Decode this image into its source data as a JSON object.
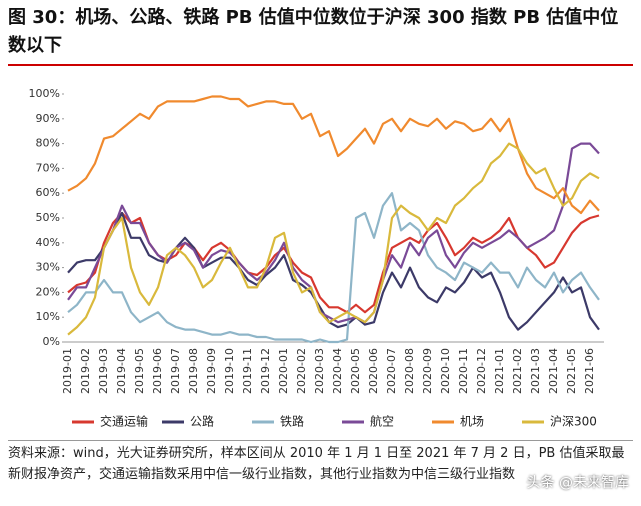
{
  "title": "图 30：机场、公路、铁路 PB 估值中位数位于沪深 300 指数 PB 估值中位数以下",
  "source": "资料来源：wind，光大证券研究所，样本区间从 2010 年 1 月 1 日至 2021 年 7 月 2 日，PB 估值采取最新财报净资产，交通运输指数采用中信一级行业指数，其他行业指数为中信三级行业指数",
  "watermark": "头条 @未来智库",
  "chart_data": {
    "type": "line",
    "categories": [
      "2019-01",
      null,
      "2019-02",
      null,
      "2019-03",
      null,
      "2019-04",
      null,
      "2019-05",
      null,
      "2019-06",
      null,
      "2019-07",
      null,
      "2019-08",
      null,
      "2019-09",
      null,
      "2019-10",
      null,
      "2019-11",
      null,
      "2019-12",
      null,
      "2020-01",
      null,
      "2020-02",
      null,
      "2020-03",
      null,
      "2020-04",
      null,
      "2020-05",
      null,
      "2020-06",
      null,
      "2020-07",
      null,
      "2020-08",
      null,
      "2020-09",
      null,
      "2020-10",
      null,
      "2020-11",
      null,
      "2020-12",
      null,
      "2021-01",
      null,
      "2021-02",
      null,
      "2021-03",
      null,
      "2021-04",
      null,
      "2021-05",
      null,
      "2021-06",
      null
    ],
    "ylim": [
      0,
      100
    ],
    "yticks": [
      {
        "value": 0,
        "label": "0%"
      },
      {
        "value": 10,
        "label": "10%"
      },
      {
        "value": 20,
        "label": "20%"
      },
      {
        "value": 30,
        "label": "30%"
      },
      {
        "value": 40,
        "label": "40%"
      },
      {
        "value": 50,
        "label": "50%"
      },
      {
        "value": 60,
        "label": "60%"
      },
      {
        "value": 70,
        "label": "70%"
      },
      {
        "value": 80,
        "label": "80%"
      },
      {
        "value": 90,
        "label": "90%"
      },
      {
        "value": 100,
        "label": "100%"
      }
    ],
    "legend": "bottom",
    "series": [
      {
        "name": "交通运输",
        "color": "#d7382f",
        "values": [
          20,
          23,
          24,
          28,
          40,
          48,
          52,
          48,
          50,
          40,
          35,
          33,
          35,
          40,
          38,
          33,
          38,
          40,
          37,
          32,
          28,
          27,
          30,
          35,
          38,
          32,
          28,
          26,
          18,
          14,
          14,
          12,
          15,
          12,
          15,
          28,
          38,
          40,
          42,
          40,
          45,
          48,
          42,
          35,
          38,
          42,
          40,
          42,
          45,
          50,
          42,
          38,
          35,
          30,
          32,
          38,
          44,
          48,
          50,
          51
        ]
      },
      {
        "name": "公路",
        "color": "#3c3a68",
        "values": [
          28,
          32,
          33,
          33,
          38,
          45,
          52,
          42,
          42,
          35,
          33,
          32,
          38,
          42,
          38,
          30,
          32,
          34,
          34,
          30,
          25,
          23,
          27,
          30,
          35,
          25,
          23,
          20,
          14,
          8,
          6,
          7,
          10,
          7,
          8,
          20,
          28,
          22,
          30,
          22,
          18,
          16,
          22,
          20,
          24,
          30,
          26,
          28,
          20,
          10,
          5,
          8,
          12,
          16,
          20,
          26,
          20,
          22,
          10,
          5
        ]
      },
      {
        "name": "铁路",
        "color": "#8eb5c8",
        "values": [
          12,
          15,
          20,
          20,
          25,
          20,
          20,
          12,
          8,
          10,
          12,
          8,
          6,
          5,
          5,
          4,
          3,
          3,
          4,
          3,
          3,
          2,
          2,
          1,
          1,
          1,
          1,
          0,
          1,
          0,
          0,
          1,
          50,
          52,
          42,
          55,
          60,
          45,
          48,
          45,
          35,
          30,
          28,
          25,
          32,
          30,
          28,
          32,
          28,
          28,
          22,
          30,
          25,
          22,
          28,
          20,
          25,
          28,
          22,
          17
        ]
      },
      {
        "name": "航空",
        "color": "#7a4a97",
        "values": [
          17,
          22,
          22,
          30,
          38,
          45,
          55,
          48,
          48,
          40,
          35,
          32,
          38,
          40,
          37,
          30,
          35,
          37,
          36,
          32,
          28,
          25,
          28,
          33,
          40,
          30,
          25,
          22,
          12,
          10,
          8,
          9,
          10,
          8,
          12,
          25,
          35,
          30,
          40,
          35,
          42,
          45,
          35,
          30,
          36,
          40,
          38,
          40,
          42,
          45,
          42,
          38,
          40,
          42,
          45,
          55,
          78,
          80,
          80,
          76
        ]
      },
      {
        "name": "机场",
        "color": "#f08a2e",
        "values": [
          61,
          63,
          66,
          72,
          82,
          83,
          86,
          89,
          92,
          90,
          95,
          97,
          97,
          97,
          97,
          98,
          99,
          99,
          98,
          98,
          95,
          96,
          97,
          97,
          96,
          96,
          90,
          92,
          83,
          85,
          75,
          78,
          82,
          86,
          80,
          88,
          90,
          85,
          90,
          88,
          87,
          90,
          86,
          89,
          88,
          85,
          86,
          90,
          85,
          90,
          78,
          68,
          62,
          60,
          58,
          62,
          55,
          52,
          57,
          53
        ]
      },
      {
        "name": "沪深300",
        "color": "#d9b93c",
        "values": [
          3,
          6,
          10,
          18,
          38,
          45,
          50,
          30,
          20,
          15,
          22,
          35,
          38,
          35,
          30,
          22,
          25,
          32,
          38,
          30,
          22,
          22,
          30,
          42,
          44,
          28,
          20,
          22,
          12,
          8,
          10,
          12,
          10,
          8,
          12,
          25,
          50,
          55,
          52,
          50,
          45,
          50,
          48,
          55,
          58,
          62,
          65,
          72,
          75,
          80,
          78,
          72,
          68,
          70,
          62,
          55,
          58,
          65,
          68,
          66
        ]
      }
    ]
  }
}
